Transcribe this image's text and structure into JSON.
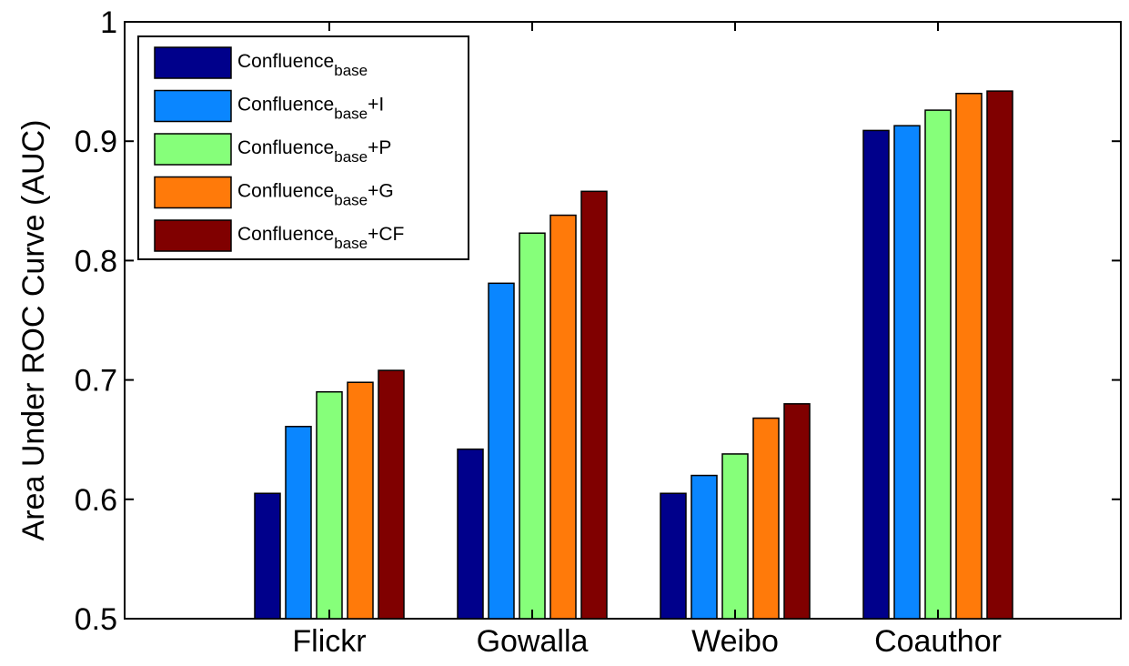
{
  "chart_data": {
    "type": "bar",
    "ylabel": "Area Under ROC Curve (AUC)",
    "xlabel": "",
    "ylim": [
      0.5,
      1
    ],
    "yticks": [
      "0.5",
      "0.6",
      "0.7",
      "0.8",
      "0.9",
      "1"
    ],
    "categories": [
      "Flickr",
      "Gowalla",
      "Weibo",
      "Coauthor"
    ],
    "legend_position": "top-left",
    "series": [
      {
        "name": "Confluence",
        "name_sub": "base",
        "name_suffix": "",
        "color": "#00008B",
        "values": [
          0.605,
          0.642,
          0.605,
          0.909
        ]
      },
      {
        "name": "Confluence",
        "name_sub": "base",
        "name_suffix": "+I",
        "color": "#0A86FF",
        "values": [
          0.661,
          0.781,
          0.62,
          0.913
        ]
      },
      {
        "name": "Confluence",
        "name_sub": "base",
        "name_suffix": "+P",
        "color": "#86FF7A",
        "values": [
          0.69,
          0.823,
          0.638,
          0.926
        ]
      },
      {
        "name": "Confluence",
        "name_sub": "base",
        "name_suffix": "+G",
        "color": "#FF7A0A",
        "values": [
          0.698,
          0.838,
          0.668,
          0.94
        ]
      },
      {
        "name": "Confluence",
        "name_sub": "base",
        "name_suffix": "+CF",
        "color": "#800000",
        "values": [
          0.708,
          0.858,
          0.68,
          0.942
        ]
      }
    ]
  }
}
